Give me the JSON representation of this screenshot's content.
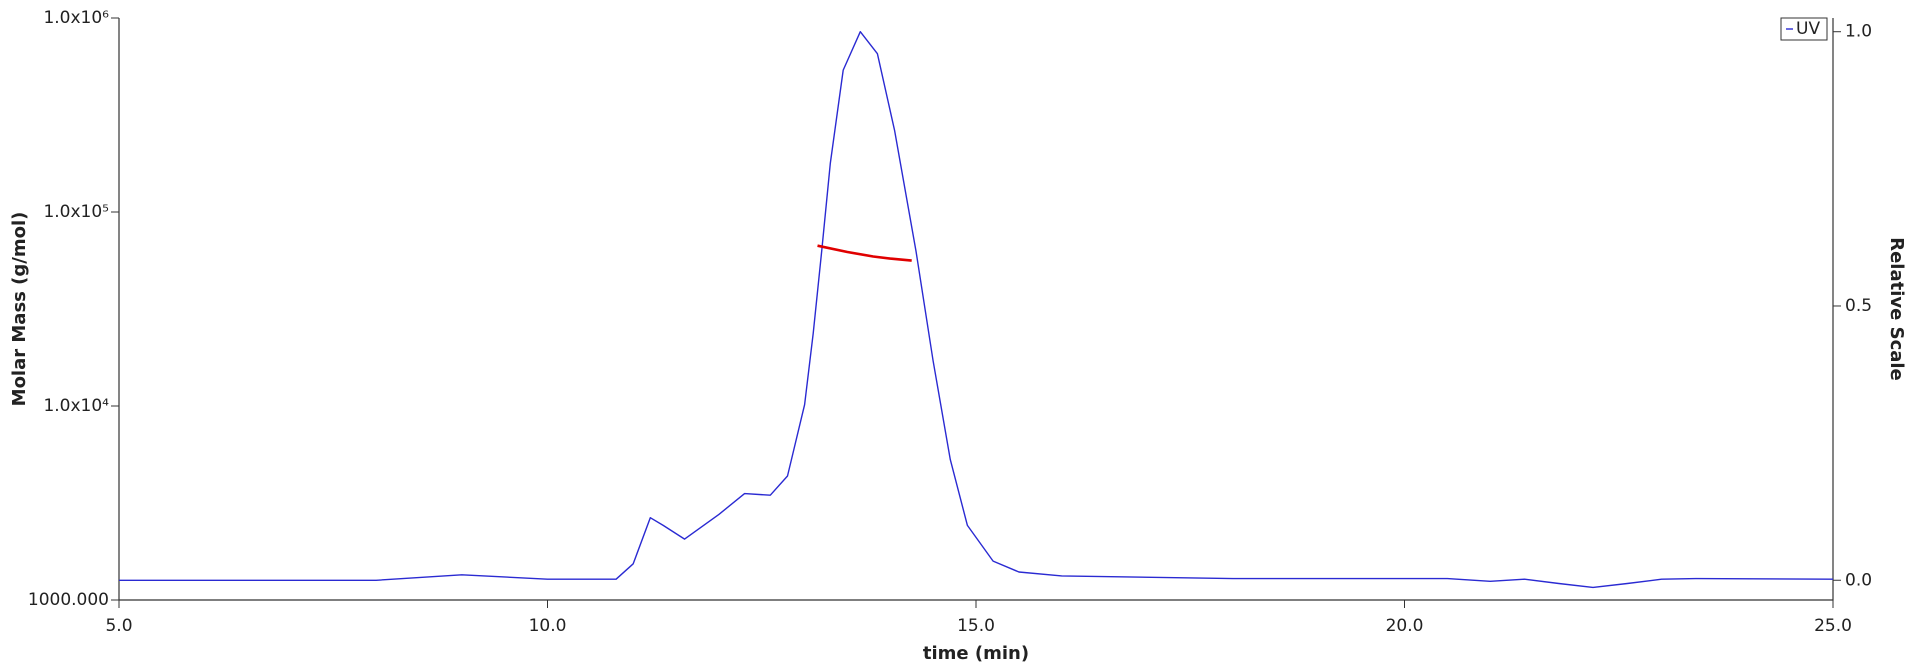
{
  "chart_data": {
    "type": "line",
    "x_label": "time (min)",
    "y_label": "Molar Mass (g/mol)",
    "y2_label": "Relative Scale",
    "xlim": [
      5,
      25
    ],
    "xticks": [
      {
        "value": 5,
        "label": "5.0"
      },
      {
        "value": 10,
        "label": "10.0"
      },
      {
        "value": 15,
        "label": "15.0"
      },
      {
        "value": 20,
        "label": "20.0"
      },
      {
        "value": 25,
        "label": "25.0"
      }
    ],
    "ylim": [
      1000,
      1000000
    ],
    "ylog": true,
    "yticks": [
      {
        "value": 1000,
        "label": "1000.000"
      },
      {
        "value": 10000,
        "label": "1.0x10⁴"
      },
      {
        "value": 100000,
        "label": "1.0x10⁵"
      },
      {
        "value": 1000000,
        "label": "1.0x10⁶"
      }
    ],
    "y2lim": [
      -0.036,
      1.025
    ],
    "y2ticks": [
      {
        "value": 0,
        "label": "0.0"
      },
      {
        "value": 0.5,
        "label": "0.5"
      },
      {
        "value": 1,
        "label": "1.0"
      }
    ],
    "legend": "top-right",
    "series": [
      {
        "name": "UV",
        "color": "#2a2ad2",
        "axis": "y2",
        "x": [
          5.0,
          8.0,
          9.0,
          10.0,
          10.8,
          11.0,
          11.2,
          11.35,
          11.6,
          12.0,
          12.3,
          12.6,
          12.8,
          13.0,
          13.1,
          13.2,
          13.3,
          13.45,
          13.65,
          13.85,
          14.05,
          14.3,
          14.5,
          14.7,
          14.9,
          15.2,
          15.5,
          16.0,
          18.0,
          20.5,
          21.0,
          21.4,
          21.8,
          22.2,
          22.6,
          23.0,
          23.4,
          25.0
        ],
        "values": [
          0.0,
          0.0,
          0.01,
          0.002,
          0.002,
          0.03,
          0.114,
          0.1,
          0.075,
          0.12,
          0.158,
          0.155,
          0.19,
          0.32,
          0.45,
          0.6,
          0.76,
          0.93,
          1.0,
          0.96,
          0.82,
          0.6,
          0.4,
          0.22,
          0.1,
          0.035,
          0.015,
          0.008,
          0.003,
          0.003,
          -0.002,
          0.002,
          -0.006,
          -0.013,
          -0.006,
          0.002,
          0.003,
          0.002
        ]
      },
      {
        "color": "#e00000",
        "axis": "y",
        "x": [
          13.15,
          13.5,
          13.8,
          14.0,
          14.25
        ],
        "values": [
          67000,
          62200,
          59000,
          57500,
          56200
        ]
      }
    ]
  }
}
